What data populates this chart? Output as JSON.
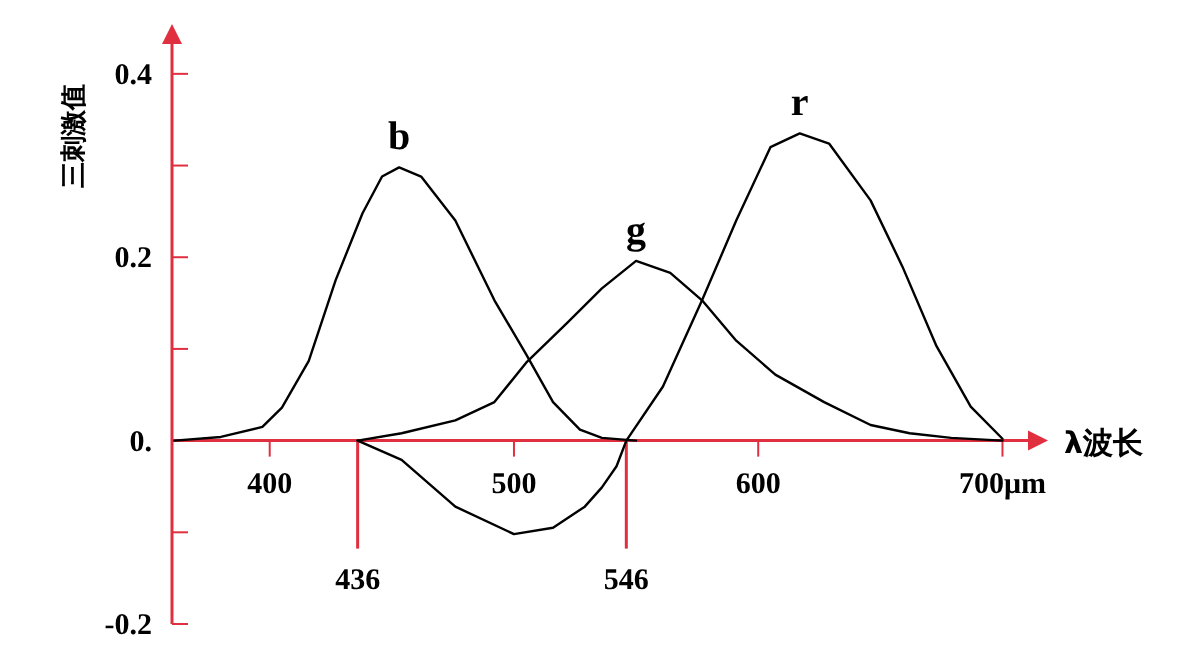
{
  "chart_data": {
    "type": "line",
    "xlabel": "λ波长",
    "ylabel": "三刺激值",
    "xlim": [
      360,
      717
    ],
    "ylim": [
      -0.2,
      0.45
    ],
    "xticks": [
      400,
      500,
      600,
      {
        "value": 700,
        "label": "700μm"
      }
    ],
    "yticks": [
      -0.2,
      {
        "value": -0.1,
        "label": null
      },
      {
        "value": 0,
        "label": "0."
      },
      {
        "value": 0.1,
        "label": null
      },
      0.2,
      {
        "value": 0.3,
        "label": null
      },
      0.4
    ],
    "marker": "none",
    "line_style": "solid",
    "ref_lines": [
      {
        "axis": "x",
        "value": 436,
        "label": "436",
        "color": "#e03040"
      },
      {
        "axis": "x",
        "value": 546,
        "label": "546",
        "color": "#e03040"
      }
    ],
    "series": [
      {
        "name": "b",
        "color": "#000000",
        "x": [
          361,
          380,
          397,
          405,
          416,
          427,
          438,
          446,
          453,
          462,
          476,
          492,
          505,
          516,
          527,
          536,
          550
        ],
        "values": [
          0,
          0.004,
          0.015,
          0.036,
          0.087,
          0.175,
          0.248,
          0.288,
          0.298,
          0.288,
          0.24,
          0.153,
          0.094,
          0.042,
          0.012,
          0.003,
          0
        ]
      },
      {
        "name": "g",
        "color": "#000000",
        "x": [
          436,
          454,
          476,
          492,
          505,
          522,
          536,
          550,
          564,
          577,
          591,
          607,
          627,
          646,
          662,
          679,
          700
        ],
        "values": [
          0,
          0.008,
          0.022,
          0.042,
          0.085,
          0.129,
          0.166,
          0.196,
          0.183,
          0.153,
          0.109,
          0.072,
          0.042,
          0.017,
          0.008,
          0.003,
          0
        ]
      },
      {
        "name": "r",
        "color": "#000000",
        "x": [
          436,
          454,
          476,
          500,
          516,
          529,
          536,
          542,
          546,
          561,
          577,
          591,
          605,
          617,
          629,
          646,
          659,
          673,
          687,
          700
        ],
        "values": [
          0,
          -0.021,
          -0.072,
          -0.102,
          -0.095,
          -0.072,
          -0.051,
          -0.028,
          0,
          0.059,
          0.153,
          0.24,
          0.32,
          0.335,
          0.324,
          0.262,
          0.19,
          0.103,
          0.037,
          0.002
        ]
      }
    ]
  }
}
